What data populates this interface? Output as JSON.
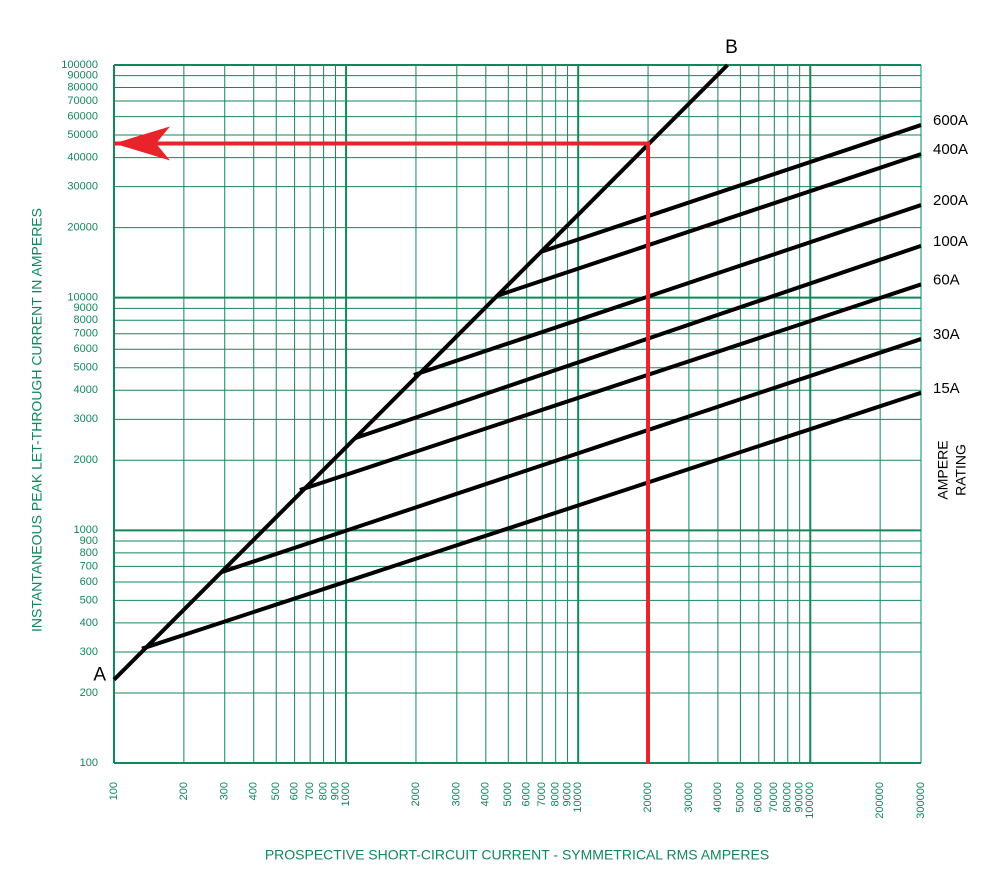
{
  "chart_data": {
    "type": "line",
    "x_label": "PROSPECTIVE SHORT-CIRCUIT CURRENT - SYMMETRICAL RMS AMPERES",
    "y_label": "INSTANTANEOUS PEAK LET-THROUGH CURRENT IN AMPERES",
    "xscale": "log",
    "yscale": "log",
    "grid": true,
    "grid_color": "#12875c",
    "xlim": [
      100,
      300000
    ],
    "ylim": [
      100,
      100000
    ],
    "xticks": [
      100,
      200,
      300,
      400,
      500,
      600,
      700,
      800,
      900,
      1000,
      2000,
      3000,
      4000,
      5000,
      6000,
      7000,
      8000,
      9000,
      10000,
      20000,
      30000,
      40000,
      50000,
      60000,
      70000,
      80000,
      90000,
      100000,
      200000,
      300000
    ],
    "yticks": [
      100,
      200,
      300,
      400,
      500,
      600,
      700,
      800,
      900,
      1000,
      2000,
      3000,
      4000,
      5000,
      6000,
      7000,
      8000,
      9000,
      10000,
      20000,
      30000,
      40000,
      50000,
      60000,
      70000,
      80000,
      90000,
      100000
    ],
    "legend_title": [
      "AMPERE",
      "RATING"
    ],
    "threshold": {
      "start_label": "A",
      "end_label": "B",
      "color": "#000000",
      "x": [
        100,
        44000
      ],
      "values": [
        228,
        100000
      ]
    },
    "guide": {
      "color": "#e8232a",
      "x": [
        20000,
        20000,
        100
      ],
      "values": [
        100,
        46000,
        46000
      ]
    },
    "series": [
      {
        "name": "600A",
        "color": "#000000",
        "x": [
          6860,
          300000
        ],
        "values": [
          15700,
          55200
        ]
      },
      {
        "name": "400A",
        "color": "#000000",
        "x": [
          4480,
          300000
        ],
        "values": [
          10200,
          41400
        ]
      },
      {
        "name": "200A",
        "color": "#000000",
        "x": [
          1960,
          300000
        ],
        "values": [
          4650,
          25000
        ]
      },
      {
        "name": "100A",
        "color": "#000000",
        "x": [
          1094,
          300000
        ],
        "values": [
          2490,
          16700
        ]
      },
      {
        "name": "60A",
        "color": "#000000",
        "x": [
          632,
          300000
        ],
        "values": [
          1490,
          11400
        ]
      },
      {
        "name": "30A",
        "color": "#000000",
        "x": [
          292,
          300000
        ],
        "values": [
          662,
          6640
        ]
      },
      {
        "name": "15A",
        "color": "#000000",
        "x": [
          132,
          300000
        ],
        "values": [
          310,
          3900
        ]
      }
    ]
  }
}
